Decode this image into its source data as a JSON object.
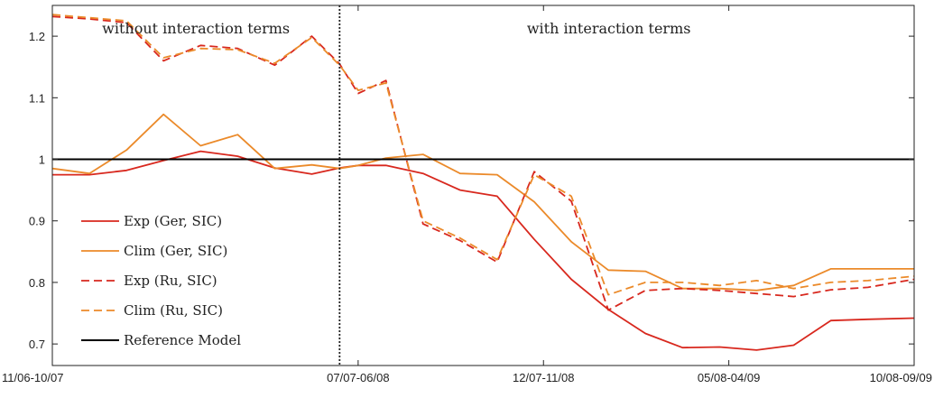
{
  "chart_data": {
    "type": "line",
    "x_ticks": [
      "11/06-10/07",
      "07/07-06/08",
      "12/07-11/08",
      "05/08-04/09",
      "10/08-09/09"
    ],
    "x_tick_positions": [
      0,
      8.25,
      13.25,
      18.25,
      23.25
    ],
    "xlim": [
      0,
      23.25
    ],
    "y_ticks": [
      "0.7",
      "0.8",
      "0.9",
      "1",
      "1.1",
      "1.2"
    ],
    "y_tick_values": [
      0.7,
      0.8,
      0.9,
      1.0,
      1.1,
      1.2
    ],
    "ylim": [
      0.665,
      1.25
    ],
    "divider_x": 7.75,
    "section_labels": [
      "without interaction terms",
      "with interaction terms"
    ],
    "legend_position": "lower-left",
    "grid": false,
    "series": [
      {
        "name": "Exp (Ger, SIC)",
        "color": "#d8281e",
        "style": "solid",
        "x": [
          0,
          1,
          2,
          3,
          4,
          5,
          6,
          7,
          7.75,
          8.25,
          9,
          10,
          11,
          12,
          13,
          14,
          15,
          16,
          17,
          18,
          19,
          20,
          21,
          22,
          23.25
        ],
        "values": [
          0.975,
          0.975,
          0.982,
          0.998,
          1.013,
          1.005,
          0.986,
          0.976,
          0.986,
          0.99,
          0.99,
          0.977,
          0.95,
          0.94,
          0.87,
          0.805,
          0.756,
          0.717,
          0.694,
          0.695,
          0.69,
          0.698,
          0.738,
          0.74,
          0.742
        ]
      },
      {
        "name": "Clim (Ger, SIC)",
        "color": "#eb8a2a",
        "style": "solid",
        "x": [
          0,
          1,
          2,
          3,
          4,
          5,
          6,
          7,
          7.75,
          8.25,
          9,
          10,
          11,
          12,
          13,
          14,
          15,
          16,
          17,
          18,
          19,
          20,
          21,
          22,
          23.25
        ],
        "values": [
          0.985,
          0.977,
          1.015,
          1.073,
          1.022,
          1.04,
          0.985,
          0.991,
          0.985,
          0.99,
          1.002,
          1.008,
          0.977,
          0.975,
          0.931,
          0.866,
          0.82,
          0.818,
          0.79,
          0.79,
          0.787,
          0.795,
          0.822,
          0.822,
          0.822
        ]
      },
      {
        "name": "Exp (Ru, SIC)",
        "color": "#d8281e",
        "style": "dashed",
        "x": [
          0,
          1,
          2,
          3,
          4,
          5,
          6,
          7,
          7.75,
          8.25,
          9,
          10,
          11,
          12,
          13,
          14,
          15,
          16,
          17,
          18,
          19,
          20,
          21,
          22,
          23.25
        ],
        "values": [
          1.232,
          1.228,
          1.222,
          1.16,
          1.185,
          1.18,
          1.153,
          1.2,
          1.155,
          1.107,
          1.128,
          0.895,
          0.868,
          0.833,
          0.98,
          0.932,
          0.755,
          0.787,
          0.79,
          0.787,
          0.782,
          0.777,
          0.788,
          0.792,
          0.805
        ]
      },
      {
        "name": "Clim (Ru, SIC)",
        "color": "#eb8a2a",
        "style": "dashed",
        "x": [
          0,
          1,
          2,
          3,
          4,
          5,
          6,
          7,
          7.75,
          8.25,
          9,
          10,
          11,
          12,
          13,
          14,
          15,
          16,
          17,
          18,
          19,
          20,
          21,
          22,
          23.25
        ],
        "values": [
          1.235,
          1.23,
          1.225,
          1.165,
          1.18,
          1.178,
          1.156,
          1.198,
          1.153,
          1.112,
          1.124,
          0.9,
          0.872,
          0.837,
          0.975,
          0.94,
          0.78,
          0.8,
          0.8,
          0.795,
          0.803,
          0.79,
          0.8,
          0.803,
          0.81
        ]
      },
      {
        "name": "Reference Model",
        "color": "#000000",
        "style": "solid",
        "x": [
          0,
          23.25
        ],
        "values": [
          1.0,
          1.0
        ]
      }
    ]
  }
}
